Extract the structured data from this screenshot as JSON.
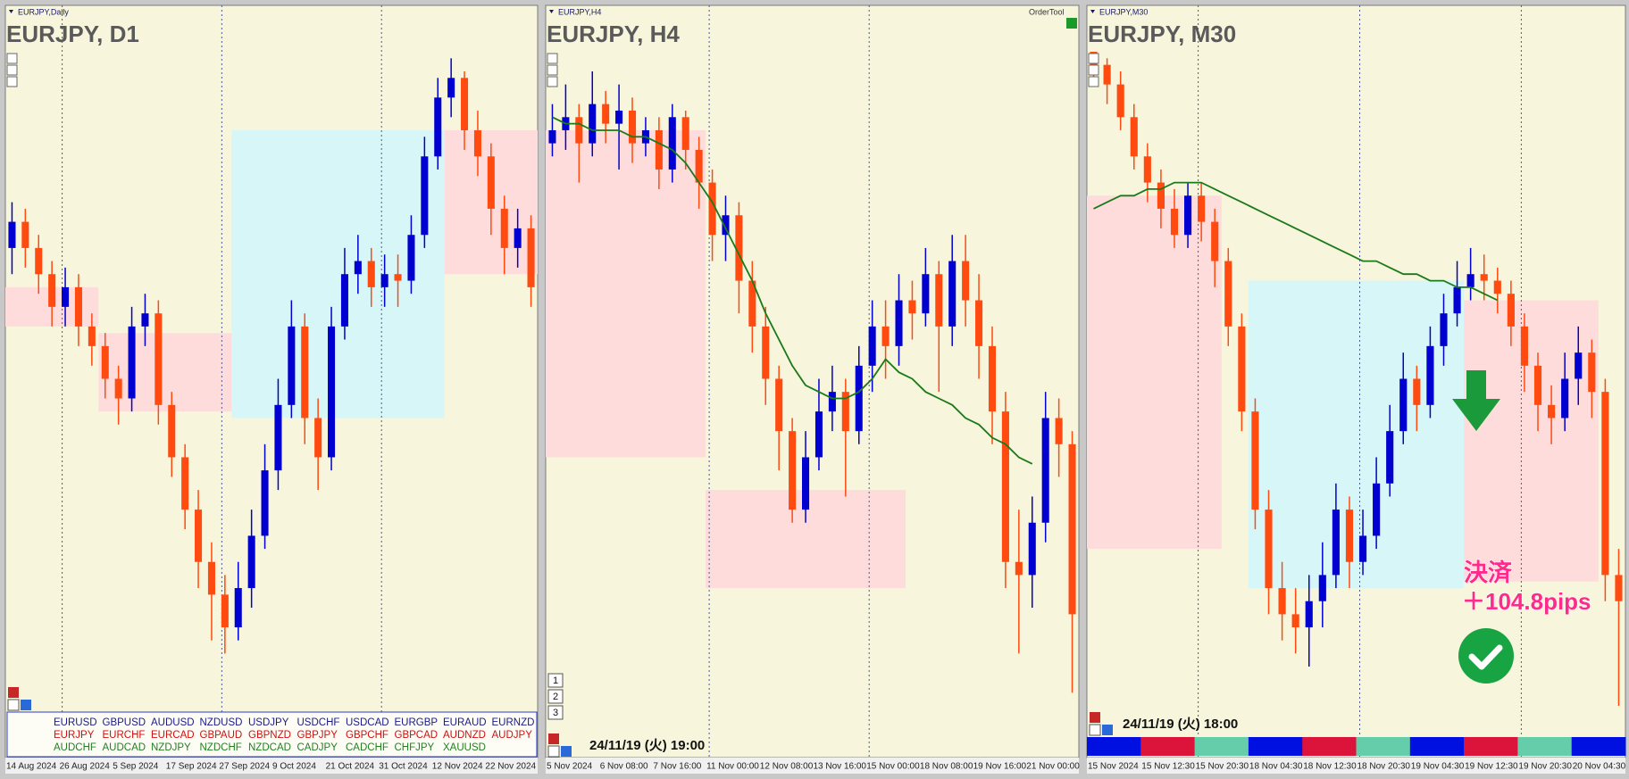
{
  "chart_data": [
    {
      "type": "candlestick",
      "label": "EURJPY,Daily",
      "title": "EURJPY, D1",
      "ylim": [
        0,
        100
      ],
      "up_color": "#0000d0",
      "down_color": "#ff4a10",
      "x_labels": [
        "14 Aug 2024",
        "26 Aug 2024",
        "5 Sep 2024",
        "17 Sep 2024",
        "27 Sep 2024",
        "9 Oct 2024",
        "21 Oct 2024",
        "31 Oct 2024",
        "12 Nov 2024",
        "22 Nov 2024"
      ],
      "open": [
        70,
        74,
        70,
        66,
        61,
        64,
        58,
        55,
        50,
        47,
        58,
        60,
        46,
        38,
        30,
        22,
        17,
        12,
        18,
        26,
        36,
        46,
        58,
        44,
        38,
        58,
        66,
        68,
        64,
        66,
        65,
        72,
        84,
        93,
        96,
        88,
        84,
        76,
        70,
        73
      ],
      "high": [
        77,
        76,
        72,
        68,
        67,
        66,
        60,
        57,
        52,
        61,
        63,
        62,
        48,
        40,
        33,
        25,
        20,
        22,
        30,
        40,
        50,
        62,
        60,
        47,
        61,
        70,
        72,
        70,
        69,
        69,
        75,
        87,
        96,
        99,
        97,
        91,
        86,
        78,
        76,
        75
      ],
      "low": [
        66,
        67,
        63,
        58,
        58,
        55,
        52,
        47,
        43,
        45,
        55,
        43,
        35,
        27,
        18,
        10,
        8,
        10,
        15,
        24,
        33,
        44,
        40,
        33,
        36,
        56,
        63,
        61,
        61,
        61,
        63,
        70,
        82,
        90,
        85,
        81,
        72,
        66,
        67,
        61
      ],
      "close": [
        74,
        70,
        66,
        61,
        64,
        58,
        55,
        50,
        47,
        58,
        60,
        46,
        38,
        30,
        22,
        17,
        12,
        18,
        26,
        36,
        46,
        58,
        44,
        38,
        58,
        66,
        68,
        64,
        66,
        65,
        72,
        84,
        93,
        96,
        88,
        84,
        76,
        70,
        73,
        64
      ],
      "zones": [
        {
          "x": [
            0,
            7
          ],
          "y": [
            58,
            64
          ],
          "color": "#ffdcdc"
        },
        {
          "x": [
            7,
            17
          ],
          "y": [
            45,
            57
          ],
          "color": "#ffdcdc"
        },
        {
          "x": [
            17,
            33
          ],
          "y": [
            44,
            88
          ],
          "color": "#d6f6f8"
        },
        {
          "x": [
            33,
            40
          ],
          "y": [
            66,
            88
          ],
          "color": "#ffdcdc"
        }
      ]
    },
    {
      "type": "candlestick",
      "label": "EURJPY,H4",
      "title": "EURJPY, H4",
      "ylim": [
        0,
        100
      ],
      "up_color": "#0000d0",
      "down_color": "#ff4a10",
      "ma_color": "#1a7a1a",
      "timestamp": "24/11/19 (火) 19:00",
      "x_labels": [
        "5 Nov 2024",
        "6 Nov 08:00",
        "7 Nov 16:00",
        "11 Nov 00:00",
        "12 Nov 08:00",
        "13 Nov 16:00",
        "15 Nov 00:00",
        "18 Nov 08:00",
        "19 Nov 16:00",
        "21 Nov 00:00"
      ],
      "open": [
        86,
        88,
        90,
        86,
        92,
        89,
        91,
        86,
        88,
        82,
        90,
        85,
        80,
        72,
        75,
        65,
        58,
        50,
        42,
        30,
        38,
        45,
        48,
        42,
        52,
        58,
        55,
        62,
        60,
        66,
        58,
        68,
        62,
        55,
        45,
        22,
        20,
        28,
        44,
        40
      ],
      "high": [
        92,
        95,
        92,
        97,
        94,
        95,
        93,
        90,
        90,
        92,
        91,
        87,
        82,
        78,
        77,
        68,
        61,
        52,
        44,
        42,
        50,
        52,
        50,
        55,
        62,
        62,
        66,
        65,
        70,
        68,
        72,
        72,
        66,
        58,
        48,
        30,
        32,
        48,
        47,
        42
      ],
      "low": [
        84,
        85,
        80,
        84,
        86,
        82,
        83,
        84,
        79,
        80,
        82,
        76,
        68,
        68,
        60,
        54,
        46,
        36,
        28,
        28,
        36,
        42,
        32,
        40,
        48,
        50,
        52,
        56,
        58,
        48,
        55,
        58,
        50,
        40,
        18,
        8,
        15,
        25,
        35,
        2
      ],
      "close": [
        88,
        90,
        86,
        92,
        89,
        91,
        86,
        88,
        82,
        90,
        85,
        80,
        72,
        75,
        65,
        58,
        50,
        42,
        30,
        38,
        45,
        48,
        42,
        52,
        58,
        55,
        62,
        60,
        66,
        58,
        68,
        62,
        55,
        45,
        22,
        20,
        28,
        44,
        40,
        14
      ],
      "ma": [
        90,
        89,
        89,
        88,
        88,
        88,
        87,
        87,
        86,
        85,
        83,
        80,
        77,
        73,
        69,
        65,
        60,
        56,
        52,
        49,
        48,
        47,
        47,
        48,
        50,
        53,
        51,
        50,
        48,
        47,
        46,
        44,
        43,
        41,
        40,
        38,
        37,
        null,
        null,
        null
      ],
      "zones": [
        {
          "x": [
            0,
            12
          ],
          "y": [
            38,
            88
          ],
          "color": "#ffdcdc"
        },
        {
          "x": [
            12,
            27
          ],
          "y": [
            18,
            33
          ],
          "color": "#ffdcdc"
        }
      ]
    },
    {
      "type": "candlestick",
      "label": "EURJPY,M30",
      "title": "EURJPY, M30",
      "ylim": [
        0,
        100
      ],
      "up_color": "#0000d0",
      "down_color": "#ff4a10",
      "ma_color": "#1a7a1a",
      "timestamp": "24/11/19 (火) 18:00",
      "x_labels": [
        "15 Nov 2024",
        "15 Nov 12:30",
        "15 Nov 20:30",
        "18 Nov 04:30",
        "18 Nov 12:30",
        "18 Nov 20:30",
        "19 Nov 04:30",
        "19 Nov 12:30",
        "19 Nov 20:30",
        "20 Nov 04:30"
      ],
      "open": [
        100,
        98,
        95,
        90,
        84,
        80,
        76,
        72,
        78,
        74,
        68,
        58,
        45,
        30,
        18,
        14,
        12,
        16,
        20,
        30,
        22,
        26,
        34,
        42,
        50,
        46,
        55,
        60,
        64,
        66,
        65,
        63,
        58,
        52,
        46,
        44,
        50,
        54,
        48,
        20
      ],
      "high": [
        100,
        99,
        97,
        92,
        86,
        82,
        79,
        80,
        80,
        76,
        70,
        60,
        47,
        33,
        22,
        18,
        20,
        25,
        34,
        32,
        30,
        38,
        46,
        54,
        52,
        58,
        63,
        68,
        70,
        69,
        67,
        65,
        60,
        54,
        49,
        54,
        58,
        56,
        50,
        24
      ],
      "low": [
        95,
        92,
        88,
        82,
        77,
        73,
        70,
        70,
        71,
        64,
        55,
        42,
        27,
        14,
        10,
        8,
        6,
        12,
        18,
        18,
        20,
        24,
        32,
        40,
        42,
        44,
        52,
        58,
        62,
        62,
        60,
        55,
        48,
        42,
        40,
        42,
        46,
        44,
        16,
        0
      ],
      "close": [
        98,
        95,
        90,
        84,
        80,
        76,
        72,
        78,
        74,
        68,
        58,
        45,
        30,
        18,
        14,
        12,
        16,
        20,
        30,
        22,
        26,
        34,
        42,
        50,
        46,
        55,
        60,
        64,
        66,
        65,
        63,
        58,
        52,
        46,
        44,
        50,
        54,
        48,
        20,
        16
      ],
      "ma": [
        76,
        77,
        78,
        78,
        79,
        79,
        80,
        80,
        80,
        79,
        78,
        77,
        76,
        75,
        74,
        73,
        72,
        71,
        70,
        69,
        68,
        68,
        67,
        66,
        66,
        65,
        65,
        64,
        64,
        63,
        62,
        null,
        null,
        null,
        null,
        null,
        null,
        null,
        null,
        null
      ],
      "zones": [
        {
          "x": [
            0,
            10
          ],
          "y": [
            24,
            78
          ],
          "color": "#ffdcdc"
        },
        {
          "x": [
            12,
            28
          ],
          "y": [
            18,
            65
          ],
          "color": "#d6f6f8"
        },
        {
          "x": [
            28,
            38
          ],
          "y": [
            19,
            62
          ],
          "color": "#ffdcdc"
        }
      ],
      "strip": [
        "#0010e0",
        "#dc143c",
        "#66cdaa",
        "#0010e0",
        "#dc143c",
        "#66cdaa",
        "#0010e0",
        "#dc143c",
        "#66cdaa",
        "#0010e0"
      ]
    }
  ],
  "order_tool": "OrderTool",
  "buttons": [
    "1",
    "2",
    "3"
  ],
  "symbols": [
    [
      "EURUSD",
      "GBPUSD",
      "AUDUSD",
      "NZDUSD",
      "USDJPY",
      "USDCHF",
      "USDCAD",
      "EURGBP",
      "EURAUD",
      "EURNZD"
    ],
    [
      "EURJPY",
      "EURCHF",
      "EURCAD",
      "GBPAUD",
      "GBPNZD",
      "GBPJPY",
      "GBPCHF",
      "GBPCAD",
      "AUDNZD",
      "AUDJPY"
    ],
    [
      "AUDCHF",
      "AUDCAD",
      "NZDJPY",
      "NZDCHF",
      "NZDCAD",
      "CADJPY",
      "CADCHF",
      "CHFJPY",
      "XAUUSD"
    ]
  ],
  "symbol_colors": [
    "#1a1a8a",
    "#d01010",
    "#208020"
  ],
  "annotation": {
    "line1": "決済",
    "line2": "＋104.8pips"
  }
}
